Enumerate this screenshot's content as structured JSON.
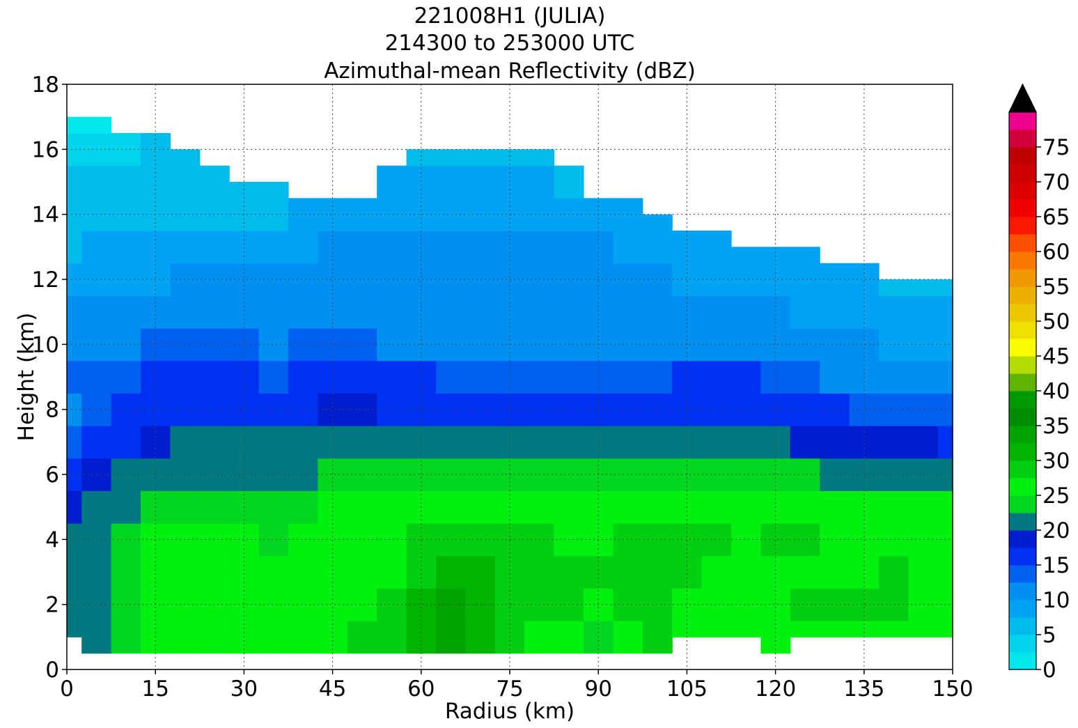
{
  "chart_data": {
    "type": "heatmap",
    "title_lines": [
      "221008H1 (JULIA)",
      "214300 to 253000 UTC",
      "Azimuthal-mean Reflectivity (dBZ)"
    ],
    "xlabel": "Radius (km)",
    "ylabel": "Height (km)",
    "xlim": [
      0,
      150
    ],
    "ylim": [
      0,
      18
    ],
    "x_ticks": [
      0,
      15,
      30,
      45,
      60,
      75,
      90,
      105,
      120,
      135,
      150
    ],
    "y_ticks": [
      0,
      2,
      4,
      6,
      8,
      10,
      12,
      14,
      16,
      18
    ],
    "grid": true,
    "colorbar": {
      "ticks": [
        0,
        5,
        10,
        15,
        20,
        25,
        30,
        35,
        40,
        45,
        50,
        55,
        60,
        65,
        70,
        75
      ],
      "range": [
        0,
        80
      ],
      "step": 2.5,
      "extend": "max",
      "extend_color": "#000000",
      "colors": [
        "#00e8ec",
        "#00d4ec",
        "#00bcec",
        "#00a4f2",
        "#0090f2",
        "#0060f0",
        "#0030f2",
        "#001ed0",
        "#007880",
        "#00d820",
        "#00f010",
        "#00d010",
        "#00b400",
        "#00a400",
        "#008c00",
        "#009800",
        "#60b400",
        "#b4dc00",
        "#fcfc00",
        "#f0e000",
        "#ecc800",
        "#ecb000",
        "#f09800",
        "#f87800",
        "#fc5000",
        "#fc1800",
        "#f00000",
        "#dc0000",
        "#cc0000",
        "#c00000",
        "#d0003c",
        "#ec008c",
        "#f000f0",
        "#d028e0",
        "#a850d0",
        "#7840a0",
        "#38204c"
      ]
    },
    "z_unit": "dBZ",
    "note_values": "Approximate azimuthal-mean reflectivity (dBZ) by radius (km) and height (km), read from the filled contours.",
    "radius": [
      0,
      5,
      10,
      15,
      20,
      25,
      30,
      35,
      40,
      45,
      50,
      55,
      60,
      65,
      70,
      75,
      80,
      85,
      90,
      95,
      100,
      105,
      110,
      115,
      120,
      125,
      130,
      135,
      140,
      145,
      150
    ],
    "height": [
      0.5,
      1,
      2,
      3,
      4,
      5,
      6,
      7,
      8,
      9,
      10,
      11,
      12,
      13,
      14,
      15,
      16,
      17
    ],
    "echo_top_km": [
      17,
      17,
      16.5,
      16.5,
      16,
      15.5,
      15,
      15,
      15,
      15,
      15,
      15.5,
      16,
      16,
      16,
      16,
      16,
      15.5,
      15,
      14.5,
      14,
      13.5,
      13.5,
      13,
      13,
      13,
      12.5,
      12.5,
      12,
      12,
      12
    ],
    "echo_base_km": [
      1,
      0.5,
      0.5,
      0.5,
      0.5,
      0.5,
      0.5,
      0.5,
      0.5,
      0.5,
      0.5,
      0.5,
      0.5,
      0.5,
      0.5,
      0.5,
      0.5,
      0.5,
      0.5,
      0.5,
      0.5,
      1,
      1,
      1,
      0.5,
      1,
      1,
      1,
      1,
      1,
      1
    ],
    "values_dbz": [
      [
        20,
        21,
        23,
        25,
        26,
        25,
        25,
        25,
        25,
        27,
        28,
        28,
        30,
        33,
        32,
        28,
        26,
        27,
        24,
        26,
        28,
        26,
        25,
        26,
        27,
        27,
        27,
        27,
        26,
        25,
        25
      ],
      [
        20,
        21,
        23,
        25,
        26,
        25,
        25,
        25,
        25,
        27,
        28,
        28,
        30,
        33,
        32,
        28,
        26,
        27,
        24,
        26,
        28,
        26,
        25,
        26,
        27,
        27,
        27,
        27,
        26,
        25,
        25
      ],
      [
        20,
        21,
        23,
        25,
        26,
        25,
        25,
        26,
        26,
        27,
        27,
        28,
        30,
        33,
        32,
        29,
        28,
        28,
        27,
        28,
        29,
        27,
        27,
        26,
        27,
        28,
        28,
        28,
        29,
        27,
        26
      ],
      [
        20,
        21,
        23,
        25,
        26,
        25,
        25,
        26,
        26,
        27,
        27,
        27,
        29,
        30,
        30,
        29,
        29,
        29,
        28,
        29,
        29,
        29,
        27,
        26,
        27,
        27,
        27,
        27,
        29,
        27,
        26
      ],
      [
        20,
        21,
        23,
        25,
        25,
        25,
        25,
        24,
        25,
        26,
        26,
        27,
        28,
        29,
        29,
        28,
        28,
        27,
        27,
        29,
        29,
        29,
        28,
        27,
        28,
        28,
        27,
        27,
        27,
        27,
        26
      ],
      [
        19,
        20,
        22,
        24,
        24,
        24,
        24,
        24,
        24,
        25,
        25,
        25,
        26,
        27,
        27,
        27,
        27,
        26,
        26,
        27,
        27,
        27,
        27,
        26,
        26,
        26,
        26,
        26,
        26,
        25,
        25
      ],
      [
        16,
        18,
        20,
        22,
        22,
        22,
        22,
        22,
        22,
        23,
        23,
        23,
        23,
        24,
        24,
        24,
        24,
        23,
        23,
        23,
        23,
        23,
        23,
        23,
        23,
        23,
        22,
        22,
        22,
        22,
        22
      ],
      [
        14,
        15,
        17,
        19,
        20,
        20,
        20,
        20,
        20,
        21,
        21,
        20,
        20,
        20,
        21,
        21,
        21,
        20,
        20,
        20,
        21,
        21,
        21,
        20,
        20,
        19,
        19,
        19,
        18,
        18,
        17
      ],
      [
        12,
        13,
        15,
        17,
        17,
        17,
        17,
        17,
        17,
        19,
        19,
        17,
        17,
        17,
        17,
        17,
        17,
        16,
        15,
        16,
        17,
        17,
        17,
        17,
        16,
        15,
        15,
        14,
        14,
        14,
        13
      ],
      [
        13,
        13,
        14,
        15,
        15,
        15,
        15,
        14,
        15,
        17,
        16,
        15,
        15,
        14,
        14,
        14,
        14,
        13,
        13,
        13,
        14,
        15,
        15,
        15,
        14,
        13,
        12,
        12,
        11,
        11,
        11
      ],
      [
        11,
        12,
        12,
        13,
        13,
        13,
        13,
        12,
        13,
        14,
        13,
        12,
        12,
        12,
        12,
        12,
        12,
        12,
        11,
        11,
        12,
        12,
        12,
        12,
        12,
        11,
        10,
        10,
        9,
        9,
        9
      ],
      [
        10,
        10,
        11,
        11,
        11,
        11,
        11,
        11,
        11,
        12,
        12,
        12,
        12,
        12,
        12,
        12,
        12,
        11,
        11,
        11,
        11,
        11,
        11,
        10,
        10,
        9,
        9,
        9,
        8,
        8,
        8
      ],
      [
        8,
        9,
        9,
        9,
        10,
        10,
        10,
        10,
        10,
        11,
        11,
        11,
        11,
        11,
        11,
        11,
        11,
        11,
        10,
        10,
        10,
        9,
        9,
        9,
        8,
        8,
        8,
        8,
        7,
        6,
        6
      ],
      [
        7,
        8,
        8,
        8,
        9,
        9,
        9,
        9,
        9,
        10,
        10,
        10,
        10,
        10,
        10,
        11,
        10,
        10,
        10,
        9,
        9,
        8,
        8,
        8,
        8,
        8,
        7,
        7,
        0,
        0,
        0
      ],
      [
        6,
        7,
        7,
        7,
        7,
        6,
        6,
        7,
        8,
        9,
        9,
        9,
        9,
        9,
        9,
        9,
        9,
        9,
        9,
        8,
        8,
        0,
        0,
        0,
        0,
        0,
        0,
        0,
        0,
        0,
        0
      ],
      [
        5,
        6,
        6,
        6,
        7,
        6,
        5,
        6,
        0,
        0,
        0,
        8,
        8,
        8,
        8,
        8,
        8,
        7,
        0,
        0,
        0,
        0,
        0,
        0,
        0,
        0,
        0,
        0,
        0,
        0,
        0
      ],
      [
        3,
        3,
        4,
        5,
        6,
        0,
        0,
        0,
        0,
        0,
        0,
        0,
        6,
        6,
        6,
        6,
        6,
        0,
        0,
        0,
        0,
        0,
        0,
        0,
        0,
        0,
        0,
        0,
        0,
        0,
        0
      ],
      [
        1,
        1,
        0,
        0,
        0,
        0,
        0,
        0,
        0,
        0,
        0,
        0,
        0,
        0,
        0,
        0,
        0,
        0,
        0,
        0,
        0,
        0,
        0,
        0,
        0,
        0,
        0,
        0,
        0,
        0,
        0
      ]
    ]
  }
}
